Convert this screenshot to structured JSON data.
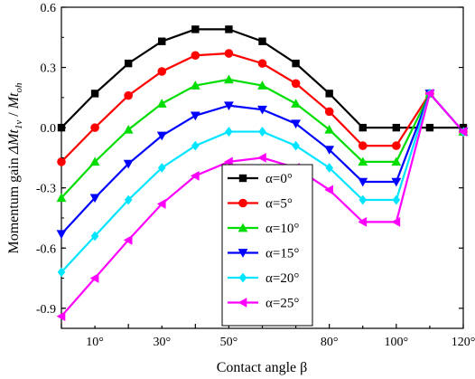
{
  "chart_data": {
    "type": "line",
    "xlabel": "Contact angle β",
    "ylabel_prefix": "Momentum gain ",
    "ylabel_math": "ΔMt",
    "ylabel_sub1": "1v",
    "ylabel_mid": " / ",
    "ylabel_math2": "Mt",
    "ylabel_sub2": "oh",
    "x": [
      0,
      10,
      20,
      30,
      40,
      50,
      60,
      70,
      80,
      90,
      100,
      110,
      120
    ],
    "xlim": [
      0,
      120
    ],
    "ylim": [
      -1.0,
      0.6
    ],
    "x_ticks": [
      10,
      30,
      50,
      80,
      100,
      120
    ],
    "x_tick_labels": [
      "10°",
      "30°",
      "50°",
      "80°",
      "100°",
      "120°"
    ],
    "y_ticks": [
      -0.9,
      -0.6,
      -0.3,
      0.0,
      0.3,
      0.6
    ],
    "y_tick_labels": [
      "-0.9",
      "-0.6",
      "-0.3",
      "0.0",
      "0.3",
      "0.6"
    ],
    "grid": false,
    "legend_position": "center-bottom",
    "series": [
      {
        "name": "α=0°",
        "color": "#000000",
        "marker": "square",
        "values": [
          0.0,
          0.17,
          0.32,
          0.43,
          0.49,
          0.49,
          0.43,
          0.32,
          0.17,
          0.0,
          0.0,
          0.0,
          0.0
        ]
      },
      {
        "name": "α=5°",
        "color": "#ff0000",
        "marker": "circle",
        "values": [
          -0.17,
          0.0,
          0.16,
          0.28,
          0.36,
          0.37,
          0.32,
          0.22,
          0.08,
          -0.09,
          -0.09,
          0.17,
          -0.02
        ]
      },
      {
        "name": "α=10°",
        "color": "#00dd00",
        "marker": "triangle-up",
        "values": [
          -0.35,
          -0.17,
          -0.01,
          0.12,
          0.21,
          0.24,
          0.21,
          0.12,
          -0.01,
          -0.17,
          -0.17,
          0.17,
          -0.02
        ]
      },
      {
        "name": "α=15°",
        "color": "#0000ff",
        "marker": "triangle-down",
        "values": [
          -0.53,
          -0.35,
          -0.18,
          -0.04,
          0.06,
          0.11,
          0.09,
          0.02,
          -0.11,
          -0.27,
          -0.27,
          0.17,
          -0.02
        ]
      },
      {
        "name": "α=20°",
        "color": "#00e5ff",
        "marker": "diamond",
        "values": [
          -0.72,
          -0.54,
          -0.36,
          -0.2,
          -0.09,
          -0.02,
          -0.02,
          -0.09,
          -0.2,
          -0.36,
          -0.36,
          0.17,
          -0.02
        ]
      },
      {
        "name": "α=25°",
        "color": "#ff00ff",
        "marker": "triangle-left",
        "values": [
          -0.94,
          -0.75,
          -0.56,
          -0.38,
          -0.24,
          -0.17,
          -0.15,
          -0.2,
          -0.31,
          -0.47,
          -0.47,
          0.17,
          -0.02
        ]
      }
    ],
    "x_per_series": [
      [
        0,
        10,
        20,
        30,
        40,
        50,
        60,
        70,
        80,
        90,
        100,
        110,
        120
      ],
      [
        0,
        10,
        20,
        30,
        40,
        50,
        60,
        70,
        80,
        90,
        100,
        110,
        120
      ],
      [
        0,
        10,
        20,
        30,
        40,
        50,
        60,
        70,
        80,
        90,
        100,
        110,
        120
      ],
      [
        0,
        10,
        20,
        30,
        40,
        50,
        60,
        70,
        80,
        90,
        100,
        110,
        120
      ],
      [
        0,
        10,
        20,
        30,
        40,
        50,
        60,
        70,
        80,
        90,
        100,
        110,
        120
      ],
      [
        0,
        10,
        20,
        30,
        40,
        50,
        60,
        70,
        80,
        90,
        100,
        110,
        120
      ]
    ]
  }
}
